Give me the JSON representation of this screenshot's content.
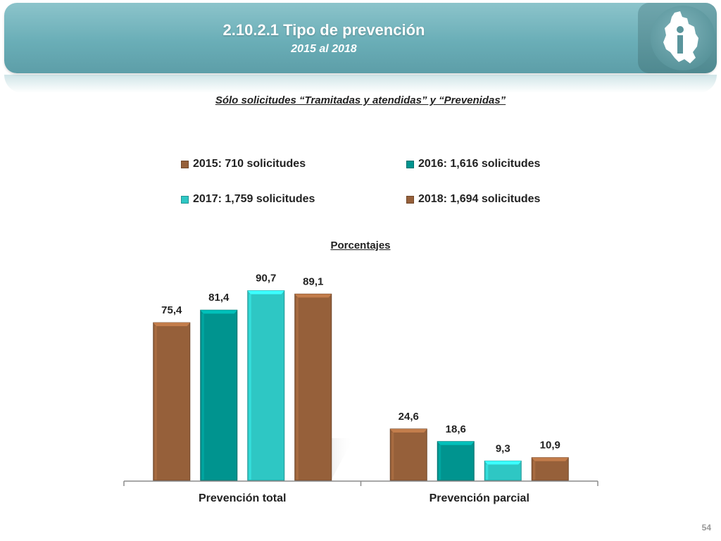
{
  "header": {
    "title": "2.10.2.1 Tipo de prevención",
    "subtitle": "2015 al 2018",
    "logo_icon": "cdmx-map-logo-icon"
  },
  "chart_subtitle": "Sólo solicitudes “Tramitadas y atendidas” y “Prevenidas”",
  "units_label": "Porcentajes",
  "page_number": "54",
  "colors": {
    "header": "#6aaeb7",
    "s2015": "#96603a",
    "s2016": "#00948f",
    "s2017": "#2ec7c4",
    "s2018": "#96603a"
  },
  "chart_data": {
    "type": "bar",
    "categories": [
      "Prevención total",
      "Prevención parcial"
    ],
    "series": [
      {
        "name": "2015: 710 solicitudes",
        "values": [
          75.4,
          24.6
        ],
        "labels": [
          "75,4",
          "24,6"
        ],
        "color": "#96603a"
      },
      {
        "name": "2016: 1,616 solicitudes",
        "values": [
          81.4,
          18.6
        ],
        "labels": [
          "81,4",
          "18,6"
        ],
        "color": "#00948f"
      },
      {
        "name": "2017: 1,759 solicitudes",
        "values": [
          90.7,
          9.3
        ],
        "labels": [
          "90,7",
          "9,3"
        ],
        "color": "#2ec7c4"
      },
      {
        "name": "2018: 1,694 solicitudes",
        "values": [
          89.1,
          10.9
        ],
        "labels": [
          "89,1",
          "10,9"
        ],
        "color": "#96603a"
      }
    ],
    "ylim": [
      0,
      100
    ],
    "grid": false,
    "legend": "top"
  }
}
